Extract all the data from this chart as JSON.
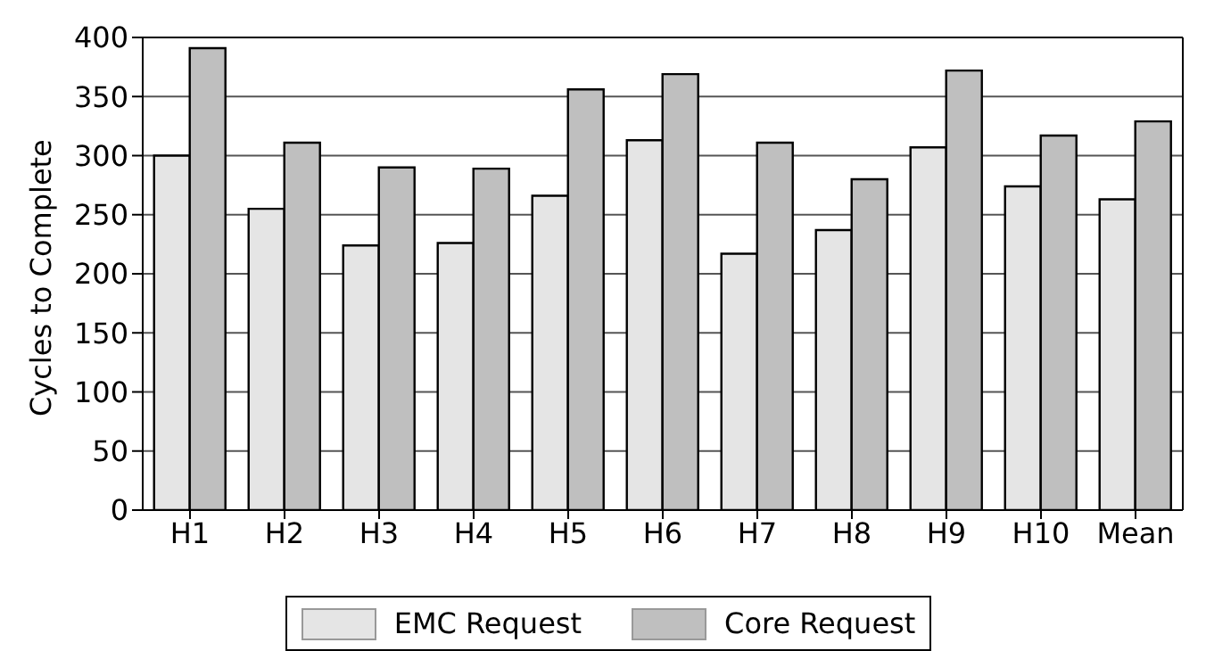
{
  "chart_data": {
    "type": "bar",
    "ylabel": "Cycles to Complete",
    "categories": [
      "H1",
      "H2",
      "H3",
      "H4",
      "H5",
      "H6",
      "H7",
      "H8",
      "H9",
      "H10",
      "Mean"
    ],
    "series": [
      {
        "name": "EMC Request",
        "color": "#e5e5e5",
        "values": [
          300,
          255,
          224,
          226,
          266,
          313,
          217,
          237,
          307,
          274,
          263
        ]
      },
      {
        "name": "Core Request",
        "color": "#bfbfbf",
        "values": [
          391,
          311,
          290,
          289,
          356,
          369,
          311,
          280,
          372,
          317,
          329
        ]
      }
    ],
    "ylim": [
      0,
      400
    ],
    "yticks": [
      0,
      50,
      100,
      150,
      200,
      250,
      300,
      350,
      400
    ],
    "grid": "y",
    "legend": "bottom"
  }
}
